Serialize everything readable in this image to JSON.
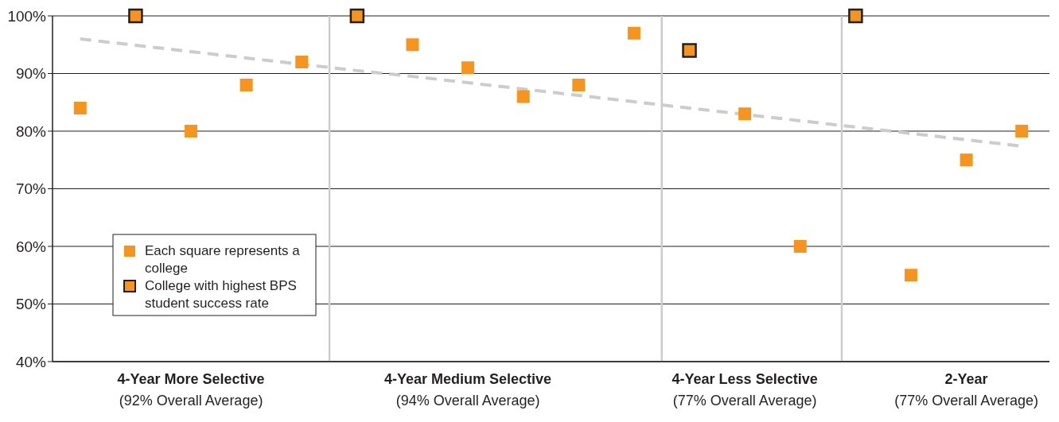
{
  "chart_data": {
    "type": "scatter",
    "marker": "square",
    "grid": "y",
    "legend": "bottom left",
    "categories": [
      null,
      null,
      "4-Year More Selective\n(92% Overall Average)",
      null,
      null,
      null,
      null,
      "4-Year Medium Selective\n(94% Overall Average)",
      null,
      null,
      null,
      null,
      "4-Year Less Selective\n(77% Overall Average)",
      null,
      null,
      null,
      "2-Year\n(77% Overall Average)",
      null
    ],
    "ylim": [
      40,
      100
    ],
    "yticks": [
      {
        "value": 40,
        "label": "40%"
      },
      {
        "value": 50,
        "label": "50%"
      },
      {
        "value": 60,
        "label": "60%"
      },
      {
        "value": 70,
        "label": "70%"
      },
      {
        "value": 80,
        "label": "80%"
      },
      {
        "value": 90,
        "label": "90%"
      },
      {
        "value": 100,
        "label": "100%"
      }
    ],
    "series": [
      {
        "type": "line",
        "marker": "none",
        "line_style": "dashed",
        "color": "#cccccc",
        "values": [
          96.0,
          94.9,
          93.8,
          92.7,
          91.6,
          90.5,
          89.5,
          88.4,
          87.3,
          86.2,
          85.1,
          84.0,
          82.9,
          81.8,
          80.7,
          79.6,
          78.5,
          77.4
        ]
      },
      {
        "name": "Each square represents a college",
        "color": "#f7941d",
        "values": [
          84,
          null,
          80,
          88,
          92,
          null,
          95,
          91,
          86,
          88,
          97,
          null,
          83,
          60,
          null,
          55,
          75,
          80
        ]
      },
      {
        "name": "College with highest BPS student success rate",
        "color": "#f7941d",
        "values": [
          null,
          100,
          null,
          null,
          null,
          100,
          null,
          null,
          null,
          null,
          null,
          94,
          null,
          null,
          100,
          null,
          null,
          null
        ]
      }
    ]
  }
}
